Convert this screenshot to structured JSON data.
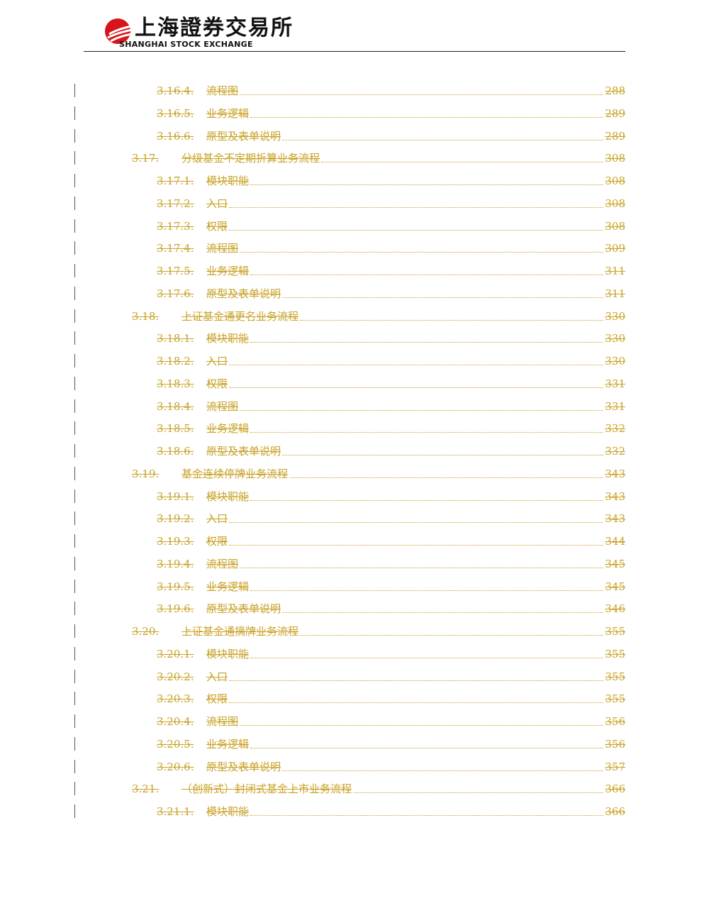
{
  "header": {
    "logo_cn": "上海證券交易所",
    "logo_en": "SHANGHAI  STOCK  EXCHANGE",
    "colors": {
      "logo_red": "#D7141A",
      "toc_gold": "#C9A227"
    }
  },
  "toc": {
    "entries": [
      {
        "level": 3,
        "num": "3.16.4.",
        "title": "流程图",
        "page": "288"
      },
      {
        "level": 3,
        "num": "3.16.5.",
        "title": "业务逻辑",
        "page": "289"
      },
      {
        "level": 3,
        "num": "3.16.6.",
        "title": "原型及表单说明",
        "page": "289"
      },
      {
        "level": 2,
        "num": "3.17.",
        "title": "分级基金不定期折算业务流程",
        "page": "308"
      },
      {
        "level": 3,
        "num": "3.17.1.",
        "title": "模块职能",
        "page": "308"
      },
      {
        "level": 3,
        "num": "3.17.2.",
        "title": "入口",
        "page": "308"
      },
      {
        "level": 3,
        "num": "3.17.3.",
        "title": "权限",
        "page": "308"
      },
      {
        "level": 3,
        "num": "3.17.4.",
        "title": "流程图",
        "page": "309"
      },
      {
        "level": 3,
        "num": "3.17.5.",
        "title": "业务逻辑",
        "page": "311"
      },
      {
        "level": 3,
        "num": "3.17.6.",
        "title": "原型及表单说明",
        "page": "311"
      },
      {
        "level": 2,
        "num": "3.18.",
        "title": "上证基金通更名业务流程",
        "page": "330"
      },
      {
        "level": 3,
        "num": "3.18.1.",
        "title": "模块职能",
        "page": "330"
      },
      {
        "level": 3,
        "num": "3.18.2.",
        "title": "入口",
        "page": "330"
      },
      {
        "level": 3,
        "num": "3.18.3.",
        "title": "权限",
        "page": "331"
      },
      {
        "level": 3,
        "num": "3.18.4.",
        "title": "流程图",
        "page": "331"
      },
      {
        "level": 3,
        "num": "3.18.5.",
        "title": "业务逻辑",
        "page": "332"
      },
      {
        "level": 3,
        "num": "3.18.6.",
        "title": "原型及表单说明",
        "page": "332"
      },
      {
        "level": 2,
        "num": "3.19.",
        "title": "基金连续停牌业务流程",
        "page": "343"
      },
      {
        "level": 3,
        "num": "3.19.1.",
        "title": "模块职能",
        "page": "343"
      },
      {
        "level": 3,
        "num": "3.19.2.",
        "title": "入口",
        "page": "343"
      },
      {
        "level": 3,
        "num": "3.19.3.",
        "title": "权限",
        "page": "344"
      },
      {
        "level": 3,
        "num": "3.19.4.",
        "title": "流程图",
        "page": "345"
      },
      {
        "level": 3,
        "num": "3.19.5.",
        "title": "业务逻辑",
        "page": "345"
      },
      {
        "level": 3,
        "num": "3.19.6.",
        "title": "原型及表单说明",
        "page": "346"
      },
      {
        "level": 2,
        "num": "3.20.",
        "title": "上证基金通摘牌业务流程",
        "page": "355"
      },
      {
        "level": 3,
        "num": "3.20.1.",
        "title": "模块职能",
        "page": "355"
      },
      {
        "level": 3,
        "num": "3.20.2.",
        "title": "入口",
        "page": "355"
      },
      {
        "level": 3,
        "num": "3.20.3.",
        "title": "权限",
        "page": "355"
      },
      {
        "level": 3,
        "num": "3.20.4.",
        "title": "流程图",
        "page": "356"
      },
      {
        "level": 3,
        "num": "3.20.5.",
        "title": "业务逻辑",
        "page": "356"
      },
      {
        "level": 3,
        "num": "3.20.6.",
        "title": "原型及表单说明",
        "page": "357"
      },
      {
        "level": 2,
        "num": "3.21.",
        "title": "（创新式）封闭式基金上市业务流程",
        "page": "366"
      },
      {
        "level": 3,
        "num": "3.21.1.",
        "title": "模块职能",
        "page": "366"
      }
    ]
  }
}
